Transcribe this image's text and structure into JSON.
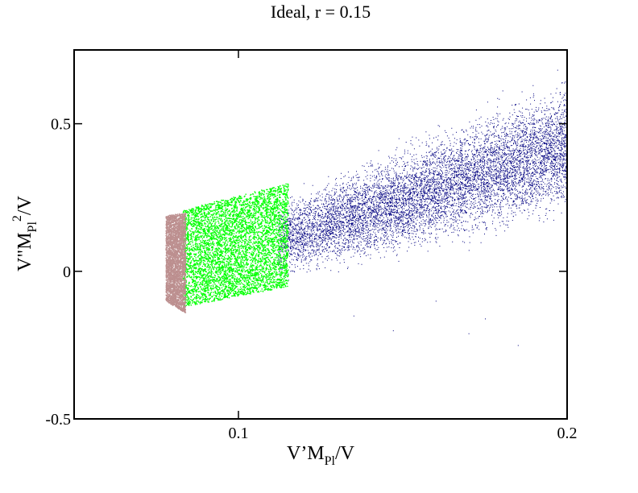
{
  "chart_data": {
    "type": "scatter",
    "title": "Ideal, r = 0.15",
    "xlabel": {
      "main": "V’M",
      "sub": "Pl",
      "tail": "/V"
    },
    "ylabel": {
      "main": "V\"M",
      "sub": "Pl",
      "sup": "2",
      "tail": "/V"
    },
    "xlim": [
      0.05,
      0.2
    ],
    "ylim": [
      -0.5,
      0.75
    ],
    "x_ticks": [
      {
        "value": 0.1,
        "label": "0.1"
      },
      {
        "value": 0.2,
        "label": "0.2"
      }
    ],
    "y_ticks": [
      {
        "value": -0.5,
        "label": "-0.5"
      },
      {
        "value": 0,
        "label": "0"
      },
      {
        "value": 0.5,
        "label": "0.5"
      }
    ],
    "grid": false,
    "legend": "none",
    "series": [
      {
        "color": "#000080",
        "shape": "wedge",
        "point_count": 9000,
        "x_range": [
          0.112,
          0.2
        ],
        "y_lower": [
          [
            0.112,
            -0.08
          ],
          [
            0.2,
            0.1
          ]
        ],
        "y_upper": [
          [
            0.112,
            0.29
          ],
          [
            0.2,
            0.75
          ]
        ],
        "outliers": [
          [
            0.135,
            -0.15
          ],
          [
            0.17,
            -0.21
          ],
          [
            0.185,
            -0.25
          ],
          [
            0.16,
            -0.1
          ],
          [
            0.147,
            -0.2
          ],
          [
            0.175,
            -0.16
          ]
        ]
      },
      {
        "color": "#00ff00",
        "shape": "block",
        "point_count": 12000,
        "x_range": [
          0.083,
          0.115
        ],
        "y_bottom": [
          [
            0.083,
            -0.12
          ],
          [
            0.115,
            -0.05
          ]
        ],
        "y_top": [
          [
            0.083,
            0.21
          ],
          [
            0.115,
            0.3
          ]
        ]
      },
      {
        "color": "#bc8f8f",
        "shape": "band",
        "point_count": 3500,
        "x_range": [
          0.0778,
          0.0838
        ],
        "y_bottom": [
          [
            0.0778,
            -0.1
          ],
          [
            0.0838,
            -0.14
          ]
        ],
        "y_top": [
          [
            0.0778,
            0.19
          ],
          [
            0.0838,
            0.2
          ]
        ]
      }
    ]
  }
}
